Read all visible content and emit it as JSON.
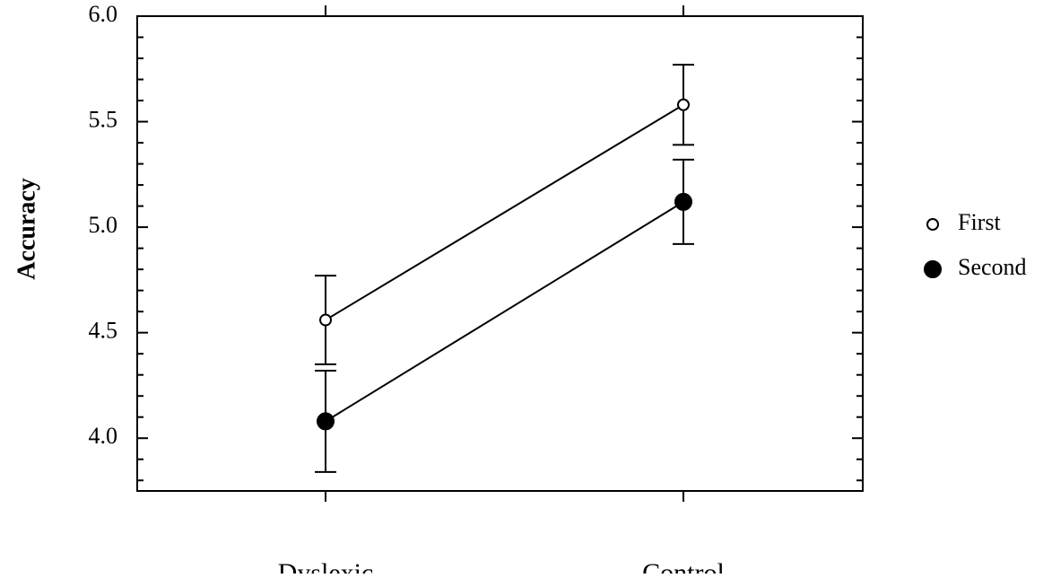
{
  "chart_data": {
    "type": "line",
    "ylabel": "Accuracy",
    "categories": [
      "Dyslexic",
      "Control"
    ],
    "series": [
      {
        "name": "First",
        "color": "#ffffff",
        "marker_size": 6,
        "values": [
          4.56,
          5.58
        ],
        "errors": [
          0.21,
          0.19
        ]
      },
      {
        "name": "Second",
        "color": "#000000",
        "marker_size": 9,
        "values": [
          4.08,
          5.12
        ],
        "errors": [
          0.24,
          0.2
        ]
      }
    ],
    "ylim": [
      3.75,
      6.0
    ],
    "yticks": [
      {
        "value": 4,
        "label": "4.0"
      },
      4.5,
      {
        "value": 5,
        "label": "5.0"
      },
      5.5,
      {
        "value": 6,
        "label": "6.0"
      }
    ],
    "yminorticks": [
      3.8,
      3.9,
      4.1,
      4.2,
      4.3,
      4.4,
      4.6,
      4.7,
      4.8,
      4.9,
      5.1,
      5.2,
      5.3,
      5.4,
      5.6,
      5.7,
      5.8,
      5.9
    ],
    "grid": false,
    "legend": "right"
  }
}
